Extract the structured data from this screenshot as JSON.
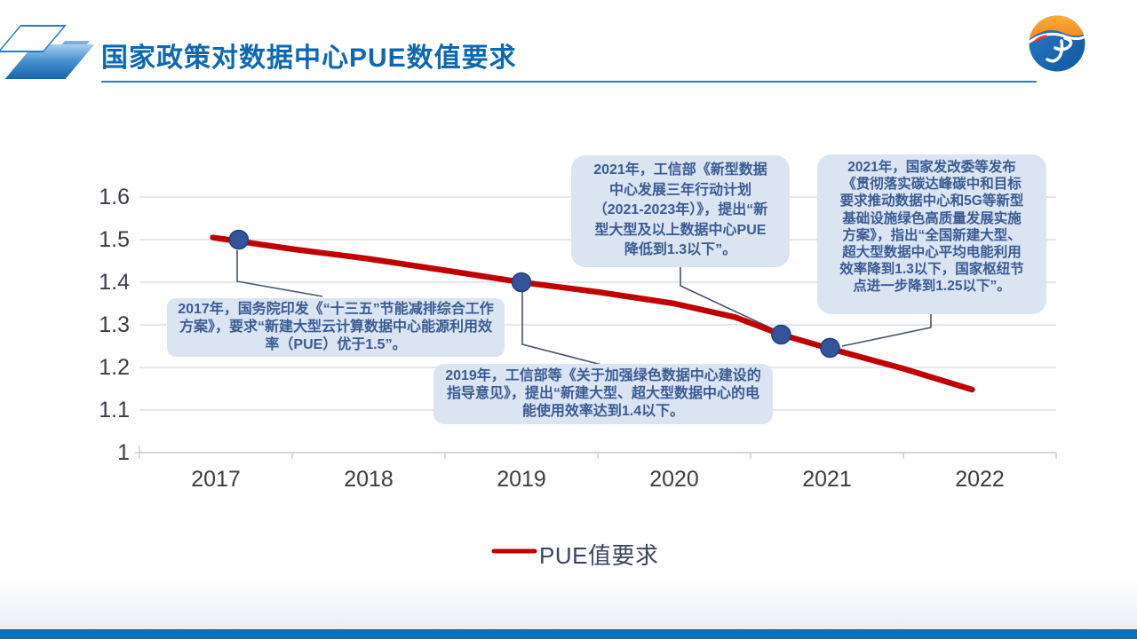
{
  "slide": {
    "title": "国家政策对数据中心PUE数值要求"
  },
  "chart_data": {
    "type": "line",
    "title": "",
    "xlabel": "",
    "ylabel": "",
    "x": [
      2017,
      2018,
      2019,
      2020,
      2021,
      2022
    ],
    "xticks": [
      "2017",
      "2018",
      "2019",
      "2020",
      "2021",
      "2022"
    ],
    "yticks": [
      "1.6",
      "1.5",
      "1.4",
      "1.3",
      "1.2",
      "1.1",
      "1"
    ],
    "ylim": [
      1,
      1.6
    ],
    "grid": true,
    "legend_position": "bottom",
    "legend": {
      "label": "PUE值要求"
    },
    "series": [
      {
        "name": "PUE值要求",
        "color": "#c00000",
        "values": [
          1.5,
          1.45,
          1.4,
          1.35,
          1.25,
          1.15
        ],
        "curve_points": [
          [
            2016.98,
            1.505
          ],
          [
            2017.5,
            1.478
          ],
          [
            2018,
            1.455
          ],
          [
            2018.5,
            1.428
          ],
          [
            2019,
            1.4
          ],
          [
            2019.5,
            1.377
          ],
          [
            2020,
            1.35
          ],
          [
            2020.4,
            1.318
          ],
          [
            2020.7,
            1.277
          ],
          [
            2021,
            1.246
          ],
          [
            2021.5,
            1.197
          ],
          [
            2021.95,
            1.148
          ]
        ],
        "marker_points": [
          [
            2017.15,
            1.5
          ],
          [
            2019,
            1.4
          ],
          [
            2020.7,
            1.277
          ],
          [
            2021.02,
            1.246
          ]
        ]
      }
    ],
    "annotations": [
      {
        "year": "2017",
        "text": "2017年，国务院印发《“十三五”节能减排综合工作方案》，要求“新建大型云计算数据中心能源利用效率（PUE）优于1.5”。"
      },
      {
        "year": "2019",
        "text": "2019年，工信部等《关于加强绿色数据中心建设的指导意见》，提出“新建大型、超大型数据中心的电能使用效率达到1.4以下。"
      },
      {
        "year": "2021",
        "text": "2021年，工信部《新型数据中心发展三年行动计划（2021-2023年）》，提出“新型大型及以上数据中心PUE降低到1.3以下”。"
      },
      {
        "year": "2021",
        "text": "2021年，国家发改委等发布《贯彻落实碳达峰碳中和目标要求推动数据中心和5G等新型基础设施绿色高质量发展实施方案》，指出“全国新建大型、超大型数据中心平均电能利用效率降到1.3以下，国家枢纽节点进一步降到1.25以下”。"
      }
    ]
  },
  "colors": {
    "title_blue": "#0d68b2",
    "line_red": "#c00000",
    "marker_blue": "#31549b",
    "marker_edge": "#24407a",
    "callout_bg": "#dbe5f1",
    "callout_text": "#3a5a94",
    "axis_text": "#3b3b47",
    "connector": "#44546a",
    "bottom_bar": "#0c6fba"
  }
}
